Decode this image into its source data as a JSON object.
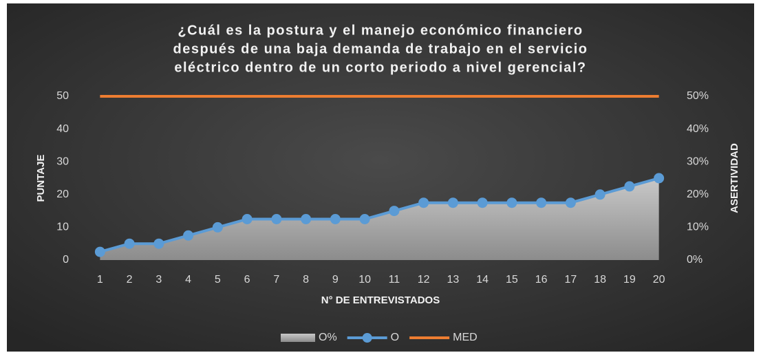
{
  "chart_data": {
    "type": "line",
    "title": [
      "¿Cuál es la postura y el manejo económico financiero",
      "después de una baja demanda de trabajo en el servicio",
      "eléctrico dentro de un corto periodo a nivel gerencial?"
    ],
    "x_label": "N° DE ENTREVISTADOS",
    "y_label": "PUNTAJE",
    "y2_label": "ASERTIVIDAD",
    "categories": [
      "1",
      "2",
      "3",
      "4",
      "5",
      "6",
      "7",
      "8",
      "9",
      "10",
      "11",
      "12",
      "13",
      "14",
      "15",
      "16",
      "17",
      "18",
      "19",
      "20"
    ],
    "ylim": [
      0,
      50
    ],
    "yticks": [
      0,
      10,
      20,
      30,
      40,
      50
    ],
    "y2lim": [
      0,
      50
    ],
    "y2ticks": [
      {
        "value": 0,
        "label": "0%"
      },
      {
        "value": 10,
        "label": "10%"
      },
      {
        "value": 20,
        "label": "20%"
      },
      {
        "value": 30,
        "label": "30%"
      },
      {
        "value": 40,
        "label": "40%"
      },
      {
        "value": 50,
        "label": "50%"
      }
    ],
    "legend": "bottom",
    "series": [
      {
        "name": "O%",
        "kind": "area",
        "axis": "y2",
        "color": "#a6a6a6",
        "values": [
          2.5,
          5,
          5,
          7.5,
          10,
          12.5,
          12.5,
          12.5,
          12.5,
          12.5,
          15,
          17.5,
          17.5,
          17.5,
          17.5,
          17.5,
          17.5,
          20,
          22.5,
          25
        ]
      },
      {
        "name": "O",
        "kind": "line",
        "markers": true,
        "color": "#5b9bd5",
        "values": [
          2.5,
          5,
          5,
          7.5,
          10,
          12.5,
          12.5,
          12.5,
          12.5,
          12.5,
          15,
          17.5,
          17.5,
          17.5,
          17.5,
          17.5,
          17.5,
          20,
          22.5,
          25
        ]
      },
      {
        "name": "MED",
        "kind": "line",
        "color": "#ed7d31",
        "values": [
          50,
          50,
          50,
          50,
          50,
          50,
          50,
          50,
          50,
          50,
          50,
          50,
          50,
          50,
          50,
          50,
          50,
          50,
          50,
          50
        ]
      }
    ]
  }
}
